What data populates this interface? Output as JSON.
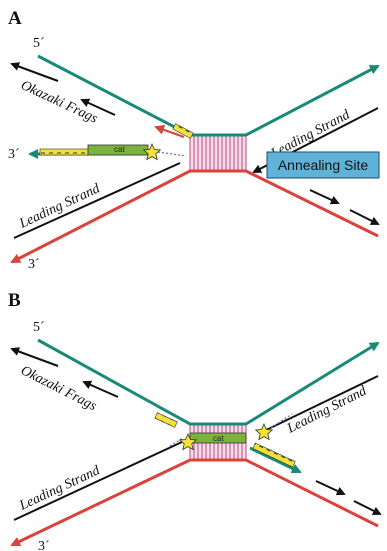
{
  "panels": [
    {
      "letter": "A",
      "five_prime": "5´",
      "three_prime_left": "3´",
      "three_prime_bottom": "3´",
      "okazaki_label": "Okazaki Frags",
      "leading_top_label": "Leading Strand",
      "leading_bottom_label": "Leading Strand",
      "cat_label": "cat",
      "annealing_site_label": "Annealing Site"
    },
    {
      "letter": "B",
      "five_prime": "5´",
      "three_prime_bottom": "3´",
      "okazaki_label": "Okazaki Frags",
      "leading_top_label": "Leading Strand",
      "leading_bottom_label": "Leading Strand",
      "cat_label": "cat"
    }
  ],
  "colors": {
    "template_top": "#1a8a78",
    "template_bottom": "#d9433c",
    "nascent": "#111111",
    "helicase_fill": "#f7e0ec",
    "helicase_lines": "#c0447c",
    "cat_box": "#7bb33c",
    "oligo": "#f0e03a",
    "star": "#f4e23a",
    "annealing_box": "#5fb3d9"
  }
}
